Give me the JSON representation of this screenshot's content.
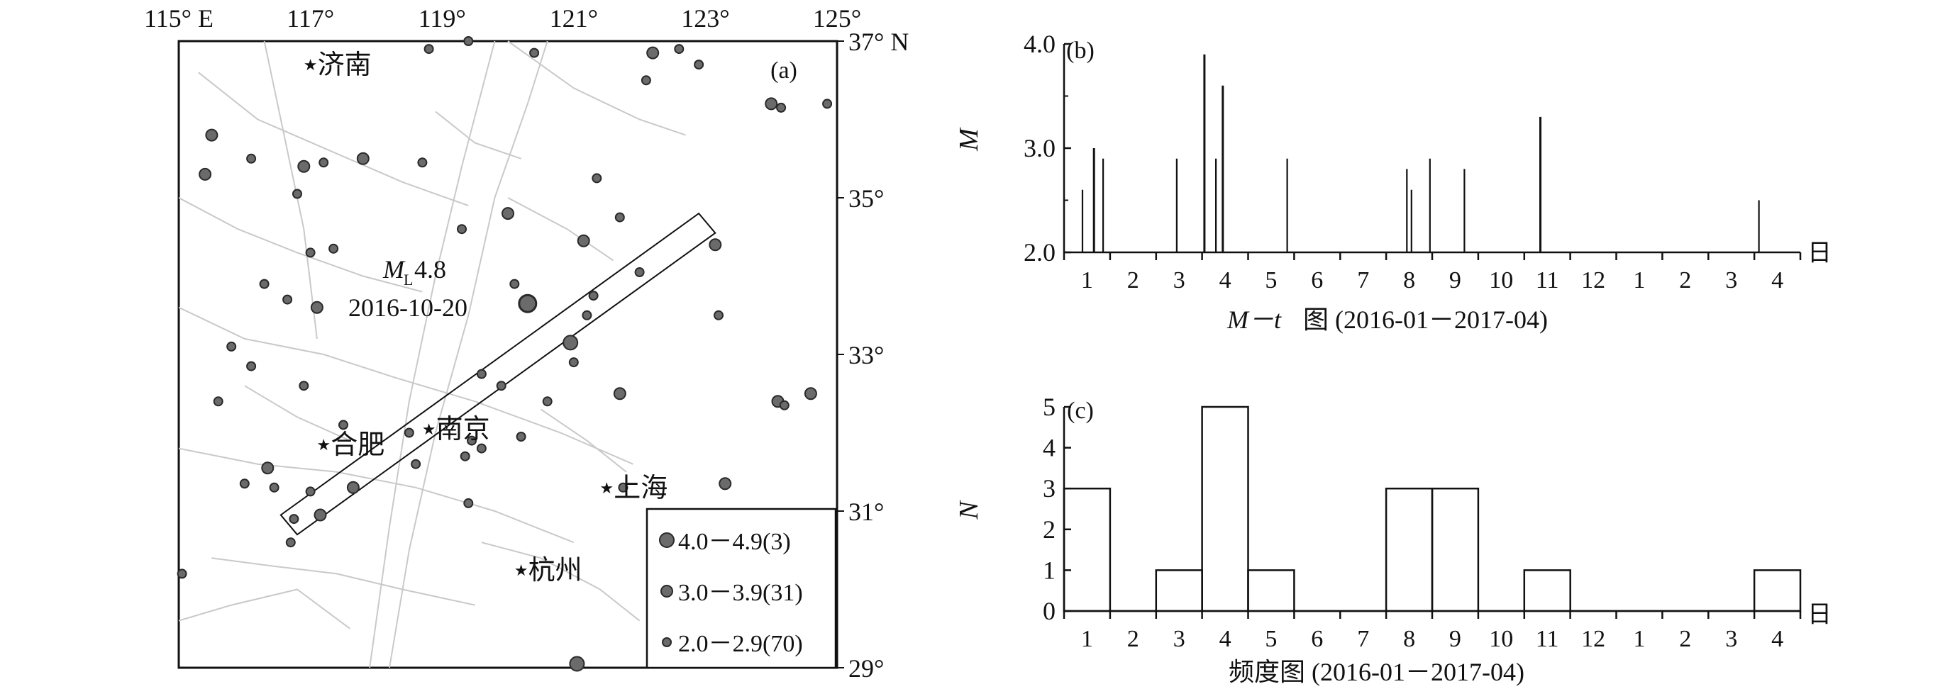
{
  "chart_data": [
    {
      "panel": "(a)",
      "type": "scatter",
      "x_ticks": [
        "115° E",
        "117°",
        "119°",
        "121°",
        "123°",
        "125°"
      ],
      "y_ticks": [
        "37° N",
        "35°",
        "33°",
        "31°",
        "29°"
      ],
      "xlim": [
        115,
        125
      ],
      "ylim": [
        29,
        37
      ],
      "grid": false,
      "cities": [
        {
          "name": "济南",
          "lon": 117.0,
          "lat": 36.7
        },
        {
          "name": "合肥",
          "lon": 117.2,
          "lat": 31.85
        },
        {
          "name": "南京",
          "lon": 118.8,
          "lat": 32.05
        },
        {
          "name": "上海",
          "lon": 121.5,
          "lat": 31.3
        },
        {
          "name": "杭州",
          "lon": 120.2,
          "lat": 30.25
        }
      ],
      "main_event": {
        "magnitude_label": "4.8",
        "date": "2016-10-20",
        "lon": 120.3,
        "lat": 33.65
      },
      "rectangle_corners": [
        [
          116.8,
          30.7
        ],
        [
          116.55,
          30.95
        ],
        [
          122.9,
          34.8
        ],
        [
          123.15,
          34.55
        ]
      ],
      "legend": {
        "placement": "bottom-right",
        "entries": [
          "4.0－4.9(3)",
          "3.0－3.9(31)",
          "2.0－2.9(70)"
        ]
      },
      "events": [
        {
          "lon": 115.5,
          "lat": 35.8,
          "cls": 1
        },
        {
          "lon": 115.4,
          "lat": 35.3,
          "cls": 1
        },
        {
          "lon": 116.1,
          "lat": 35.5,
          "cls": 2
        },
        {
          "lon": 116.9,
          "lat": 35.4,
          "cls": 1
        },
        {
          "lon": 117.2,
          "lat": 35.45,
          "cls": 2
        },
        {
          "lon": 117.8,
          "lat": 35.5,
          "cls": 1
        },
        {
          "lon": 116.8,
          "lat": 35.05,
          "cls": 2
        },
        {
          "lon": 118.8,
          "lat": 36.9,
          "cls": 2
        },
        {
          "lon": 119.4,
          "lat": 37.0,
          "cls": 2
        },
        {
          "lon": 120.4,
          "lat": 36.85,
          "cls": 2
        },
        {
          "lon": 122.2,
          "lat": 36.85,
          "cls": 1
        },
        {
          "lon": 122.6,
          "lat": 36.9,
          "cls": 2
        },
        {
          "lon": 122.1,
          "lat": 36.5,
          "cls": 2
        },
        {
          "lon": 122.9,
          "lat": 36.7,
          "cls": 2
        },
        {
          "lon": 124.0,
          "lat": 36.2,
          "cls": 1
        },
        {
          "lon": 124.15,
          "lat": 36.15,
          "cls": 2
        },
        {
          "lon": 124.85,
          "lat": 36.2,
          "cls": 2
        },
        {
          "lon": 118.7,
          "lat": 35.45,
          "cls": 2
        },
        {
          "lon": 121.35,
          "lat": 35.25,
          "cls": 2
        },
        {
          "lon": 120.0,
          "lat": 34.8,
          "cls": 1
        },
        {
          "lon": 121.7,
          "lat": 34.75,
          "cls": 2
        },
        {
          "lon": 119.3,
          "lat": 34.6,
          "cls": 2
        },
        {
          "lon": 121.15,
          "lat": 34.45,
          "cls": 1
        },
        {
          "lon": 117.0,
          "lat": 34.3,
          "cls": 2
        },
        {
          "lon": 117.35,
          "lat": 34.35,
          "cls": 2
        },
        {
          "lon": 116.3,
          "lat": 33.9,
          "cls": 2
        },
        {
          "lon": 116.65,
          "lat": 33.7,
          "cls": 2
        },
        {
          "lon": 117.1,
          "lat": 33.6,
          "cls": 1
        },
        {
          "lon": 120.1,
          "lat": 33.9,
          "cls": 2
        },
        {
          "lon": 121.3,
          "lat": 33.75,
          "cls": 2
        },
        {
          "lon": 121.2,
          "lat": 33.5,
          "cls": 2
        },
        {
          "lon": 122.0,
          "lat": 34.05,
          "cls": 2
        },
        {
          "lon": 123.15,
          "lat": 34.4,
          "cls": 1
        },
        {
          "lon": 123.2,
          "lat": 33.5,
          "cls": 2
        },
        {
          "lon": 115.8,
          "lat": 33.1,
          "cls": 2
        },
        {
          "lon": 116.1,
          "lat": 32.85,
          "cls": 2
        },
        {
          "lon": 116.9,
          "lat": 32.6,
          "cls": 2
        },
        {
          "lon": 120.95,
          "lat": 33.15,
          "cls": 0
        },
        {
          "lon": 121.0,
          "lat": 32.9,
          "cls": 2
        },
        {
          "lon": 119.6,
          "lat": 32.75,
          "cls": 2
        },
        {
          "lon": 115.6,
          "lat": 32.4,
          "cls": 2
        },
        {
          "lon": 121.7,
          "lat": 32.5,
          "cls": 1
        },
        {
          "lon": 120.6,
          "lat": 32.4,
          "cls": 2
        },
        {
          "lon": 119.9,
          "lat": 32.6,
          "cls": 2
        },
        {
          "lon": 124.1,
          "lat": 32.4,
          "cls": 1
        },
        {
          "lon": 124.2,
          "lat": 32.35,
          "cls": 2
        },
        {
          "lon": 124.6,
          "lat": 32.5,
          "cls": 1
        },
        {
          "lon": 117.5,
          "lat": 32.1,
          "cls": 2
        },
        {
          "lon": 118.5,
          "lat": 32.0,
          "cls": 2
        },
        {
          "lon": 119.6,
          "lat": 31.8,
          "cls": 2
        },
        {
          "lon": 120.2,
          "lat": 31.95,
          "cls": 2
        },
        {
          "lon": 119.45,
          "lat": 31.9,
          "cls": 2
        },
        {
          "lon": 119.35,
          "lat": 31.7,
          "cls": 2
        },
        {
          "lon": 118.6,
          "lat": 31.6,
          "cls": 2
        },
        {
          "lon": 116.35,
          "lat": 31.55,
          "cls": 1
        },
        {
          "lon": 116.0,
          "lat": 31.35,
          "cls": 2
        },
        {
          "lon": 116.45,
          "lat": 31.3,
          "cls": 2
        },
        {
          "lon": 117.0,
          "lat": 31.25,
          "cls": 2
        },
        {
          "lon": 117.65,
          "lat": 31.3,
          "cls": 1
        },
        {
          "lon": 116.75,
          "lat": 30.9,
          "cls": 2
        },
        {
          "lon": 117.15,
          "lat": 30.95,
          "cls": 1
        },
        {
          "lon": 119.4,
          "lat": 31.1,
          "cls": 2
        },
        {
          "lon": 121.75,
          "lat": 31.3,
          "cls": 2
        },
        {
          "lon": 123.3,
          "lat": 31.35,
          "cls": 1
        },
        {
          "lon": 116.7,
          "lat": 30.6,
          "cls": 2
        },
        {
          "lon": 115.05,
          "lat": 30.2,
          "cls": 2
        },
        {
          "lon": 121.05,
          "lat": 29.05,
          "cls": 0
        }
      ]
    },
    {
      "panel": "(b)",
      "type": "bar",
      "y_tick_labels": [
        "4.0",
        "3.0",
        "2.0"
      ],
      "ylabel": "M",
      "ylim": [
        2.0,
        4.0
      ],
      "month_labels": [
        "1",
        "2",
        "3",
        "4",
        "5",
        "6",
        "7",
        "8",
        "9",
        "10",
        "11",
        "12",
        "1",
        "2",
        "3",
        "4"
      ],
      "axis_end_label": "日",
      "caption_main": "M－t",
      "caption_rest": "图 (2016-01－2017-04)",
      "events": [
        {
          "t": 0.4,
          "m": 2.6
        },
        {
          "t": 0.65,
          "m": 3.0
        },
        {
          "t": 0.85,
          "m": 2.9
        },
        {
          "t": 2.45,
          "m": 2.9
        },
        {
          "t": 3.05,
          "m": 3.9
        },
        {
          "t": 3.3,
          "m": 2.9
        },
        {
          "t": 3.45,
          "m": 3.6
        },
        {
          "t": 4.85,
          "m": 2.9
        },
        {
          "t": 7.45,
          "m": 2.8
        },
        {
          "t": 7.55,
          "m": 2.6
        },
        {
          "t": 7.95,
          "m": 2.9
        },
        {
          "t": 8.7,
          "m": 2.8
        },
        {
          "t": 10.35,
          "m": 3.3
        },
        {
          "t": 15.1,
          "m": 2.5
        }
      ]
    },
    {
      "panel": "(c)",
      "type": "bar",
      "y_tick_labels": [
        "5",
        "4",
        "3",
        "2",
        "1",
        "0"
      ],
      "ylabel": "N",
      "ylim": [
        0,
        5
      ],
      "month_labels": [
        "1",
        "2",
        "3",
        "4",
        "5",
        "6",
        "7",
        "8",
        "9",
        "10",
        "11",
        "12",
        "1",
        "2",
        "3",
        "4"
      ],
      "values": [
        3,
        0,
        1,
        5,
        1,
        0,
        0,
        3,
        3,
        0,
        1,
        0,
        0,
        0,
        0,
        1
      ],
      "axis_end_label": "日",
      "caption": "频度图 (2016-01－2017-04)"
    }
  ],
  "labels": {
    "panel_a": "(a)",
    "panel_b": "(b)",
    "panel_c": "(c)",
    "event_prefix": "M",
    "event_subscript": "L",
    "event_magnitude": "4.8",
    "event_date": "2016-10-20"
  },
  "colors": {
    "ink": "#111111",
    "fault": "#c9c9c9",
    "marker_fill": "#6b6b6b",
    "marker_stroke": "#2a2a2a"
  }
}
